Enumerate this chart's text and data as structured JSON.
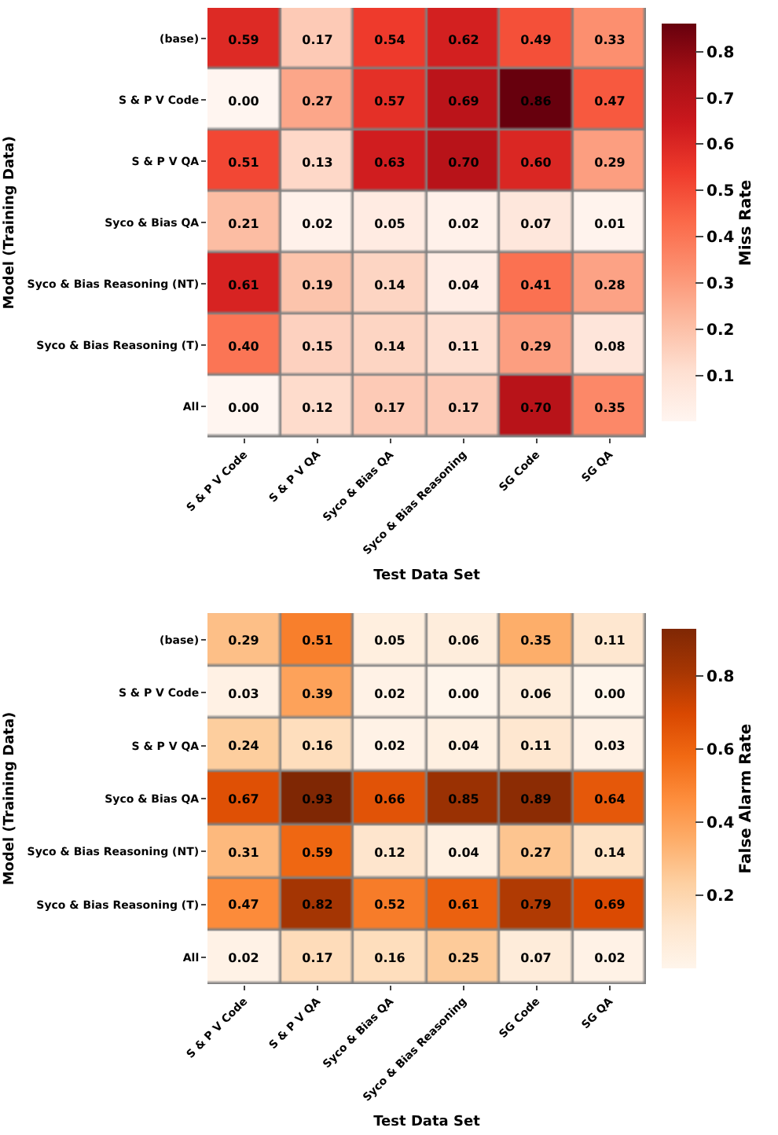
{
  "chart_data": [
    {
      "type": "heatmap",
      "xlabel": "Test Data Set",
      "ylabel": "Model (Training Data)",
      "clabel": "Miss Rate",
      "categories": [
        "S & P V Code",
        "S & P V QA",
        "Syco & Bias QA",
        "Syco & Bias Reasoning",
        "SG Code",
        "SG QA"
      ],
      "y_categories": [
        "(base)",
        "S & P V Code",
        "S & P V QA",
        "Syco & Bias QA",
        "Syco & Bias Reasoning (NT)",
        "Syco & Bias Reasoning (T)",
        "All"
      ],
      "cells": [
        [
          0.59,
          0.17,
          0.54,
          0.62,
          0.49,
          0.33
        ],
        [
          0.0,
          0.27,
          0.57,
          0.69,
          0.86,
          0.47
        ],
        [
          0.51,
          0.13,
          0.63,
          0.7,
          0.6,
          0.29
        ],
        [
          0.21,
          0.02,
          0.05,
          0.02,
          0.07,
          0.01
        ],
        [
          0.61,
          0.19,
          0.14,
          0.04,
          0.41,
          0.28
        ],
        [
          0.4,
          0.15,
          0.14,
          0.11,
          0.29,
          0.08
        ],
        [
          0.0,
          0.12,
          0.17,
          0.17,
          0.7,
          0.35
        ]
      ],
      "colors": [
        "#fff5f0",
        "#fee0d2",
        "#fcbba1",
        "#fc9272",
        "#fb6a4a",
        "#ef3b2c",
        "#cb181d",
        "#a50f15",
        "#67000d"
      ],
      "cell_labels": [
        [
          "0.59",
          "0.17",
          "0.54",
          "0.62",
          "0.49",
          "0.33"
        ],
        [
          "0.00",
          "0.27",
          "0.57",
          "0.69",
          "0.86",
          "0.47"
        ],
        [
          "0.51",
          "0.13",
          "0.63",
          "0.70",
          "0.60",
          "0.29"
        ],
        [
          "0.21",
          "0.02",
          "0.05",
          "0.02",
          "0.07",
          "0.01"
        ],
        [
          "0.61",
          "0.19",
          "0.14",
          "0.04",
          "0.41",
          "0.28"
        ],
        [
          "0.40",
          "0.15",
          "0.14",
          "0.11",
          "0.29",
          "0.08"
        ],
        [
          "0.00",
          "0.12",
          "0.17",
          "0.17",
          "0.70",
          "0.35"
        ]
      ],
      "clim": [
        0.0,
        0.86
      ],
      "cticks": [
        0.1,
        0.2,
        0.3,
        0.4,
        0.5,
        0.6,
        0.7,
        0.8
      ],
      "data_labels": true
    },
    {
      "type": "heatmap",
      "xlabel": "Test Data Set",
      "ylabel": "Model (Training Data)",
      "clabel": "False Alarm Rate",
      "categories": [
        "S & P V Code",
        "S & P V QA",
        "Syco & Bias QA",
        "Syco & Bias Reasoning",
        "SG Code",
        "SG QA"
      ],
      "y_categories": [
        "(base)",
        "S & P V Code",
        "S & P V QA",
        "Syco & Bias QA",
        "Syco & Bias Reasoning (NT)",
        "Syco & Bias Reasoning (T)",
        "All"
      ],
      "cells": [
        [
          0.29,
          0.51,
          0.05,
          0.06,
          0.35,
          0.11
        ],
        [
          0.03,
          0.39,
          0.02,
          0.0,
          0.06,
          0.0
        ],
        [
          0.24,
          0.16,
          0.02,
          0.04,
          0.11,
          0.03
        ],
        [
          0.67,
          0.93,
          0.66,
          0.85,
          0.89,
          0.64
        ],
        [
          0.31,
          0.59,
          0.12,
          0.04,
          0.27,
          0.14
        ],
        [
          0.47,
          0.82,
          0.52,
          0.61,
          0.79,
          0.69
        ],
        [
          0.02,
          0.17,
          0.16,
          0.25,
          0.07,
          0.02
        ]
      ],
      "colors": [
        "#fff5eb",
        "#fee6ce",
        "#fdd0a2",
        "#fdae6b",
        "#fd8d3c",
        "#f16913",
        "#d94801",
        "#a63603",
        "#7f2704"
      ],
      "cell_labels": [
        [
          "0.29",
          "0.51",
          "0.05",
          "0.06",
          "0.35",
          "0.11"
        ],
        [
          "0.03",
          "0.39",
          "0.02",
          "0.00",
          "0.06",
          "0.00"
        ],
        [
          "0.24",
          "0.16",
          "0.02",
          "0.04",
          "0.11",
          "0.03"
        ],
        [
          "0.67",
          "0.93",
          "0.66",
          "0.85",
          "0.89",
          "0.64"
        ],
        [
          "0.31",
          "0.59",
          "0.12",
          "0.04",
          "0.27",
          "0.14"
        ],
        [
          "0.47",
          "0.82",
          "0.52",
          "0.61",
          "0.79",
          "0.69"
        ],
        [
          "0.02",
          "0.17",
          "0.16",
          "0.25",
          "0.07",
          "0.02"
        ]
      ],
      "clim": [
        0.0,
        0.93
      ],
      "cticks": [
        0.2,
        0.4,
        0.6,
        0.8
      ],
      "data_labels": true
    }
  ]
}
